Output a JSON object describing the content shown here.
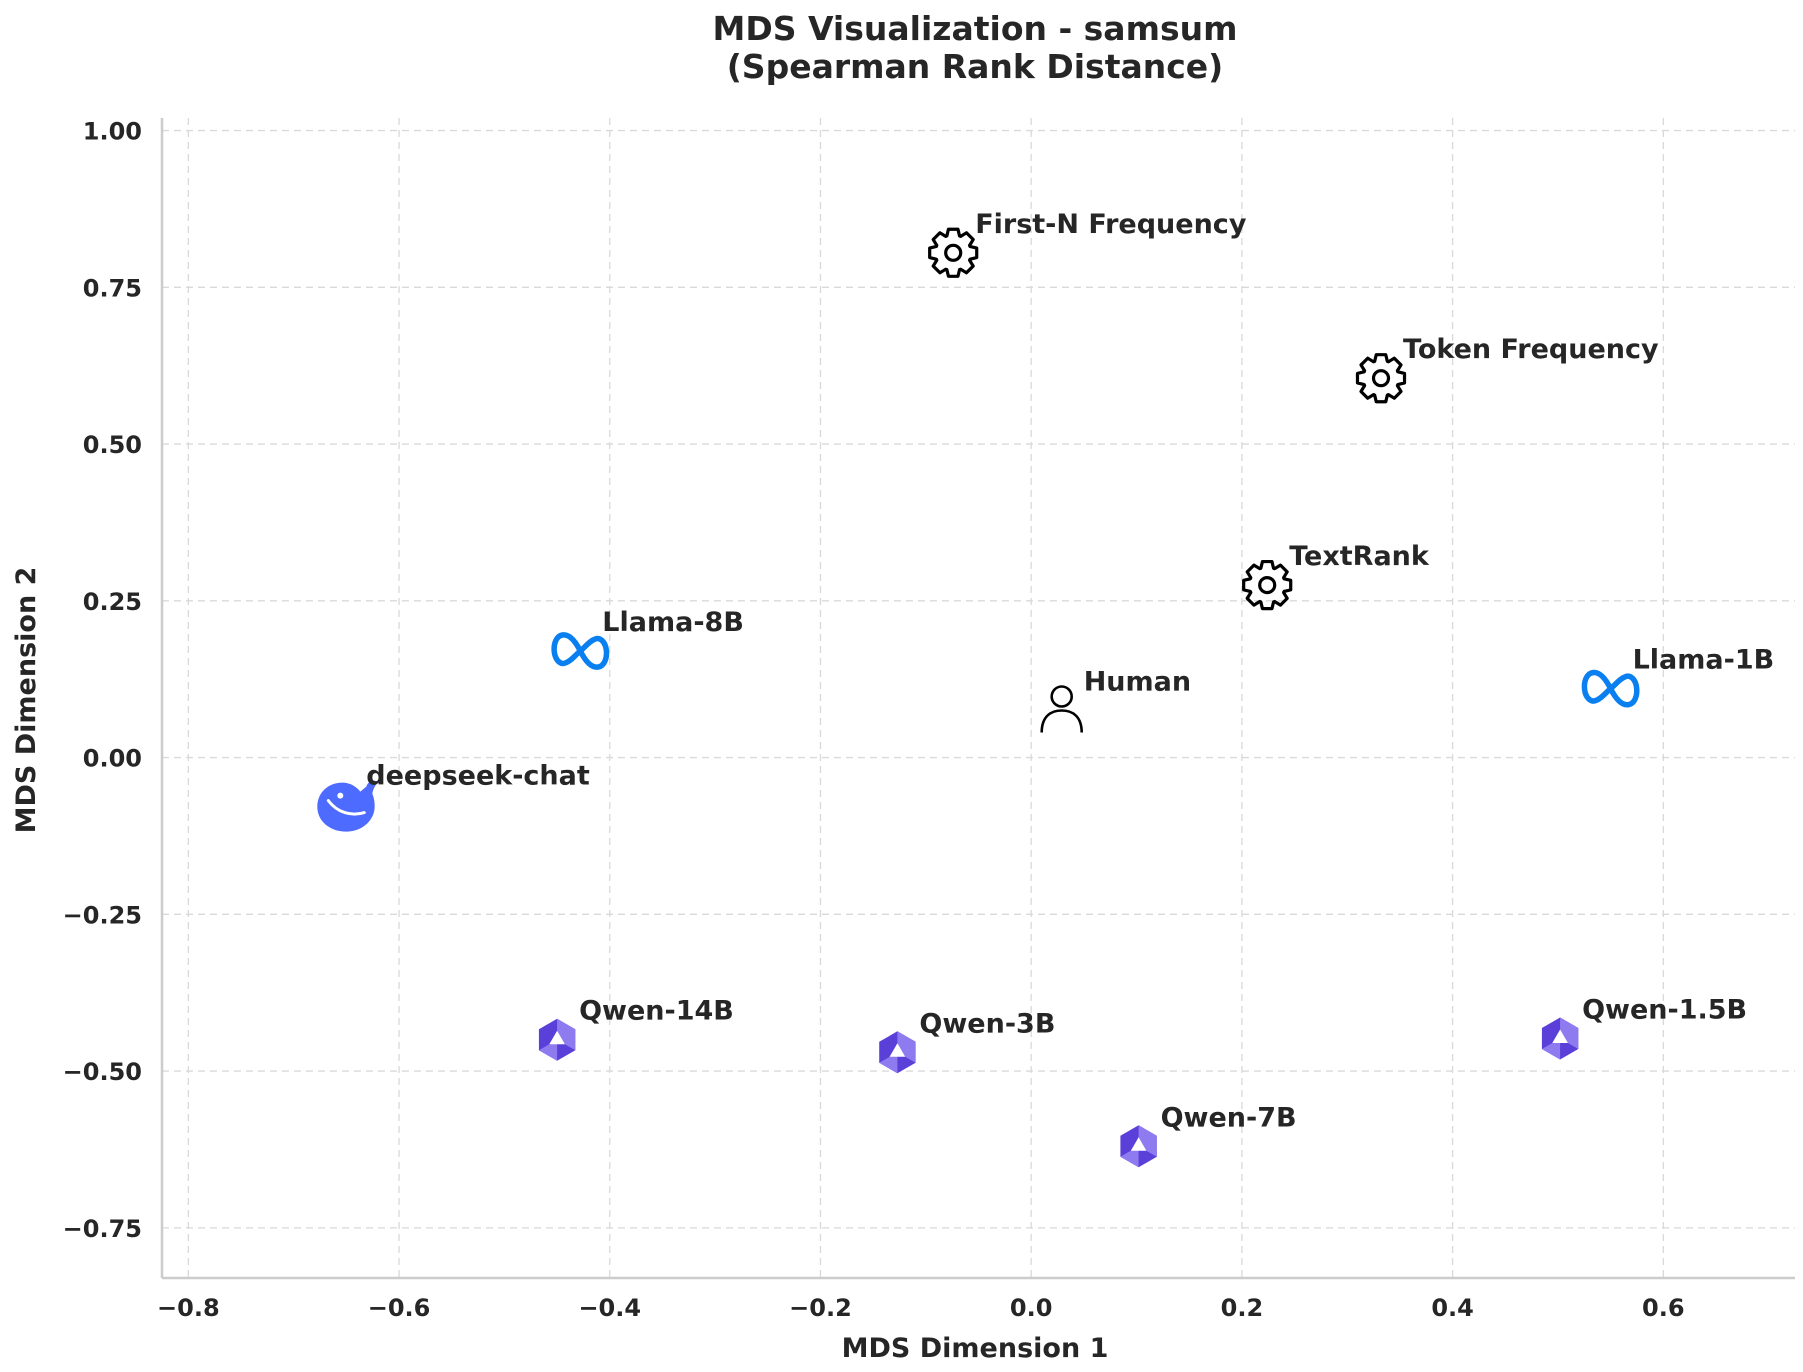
{
  "chart_data": {
    "type": "scatter",
    "title_lines": [
      "MDS Visualization - samsum",
      "(Spearman Rank Distance)"
    ],
    "xlabel": "MDS Dimension 1",
    "ylabel": "MDS Dimension 2",
    "xlim": [
      -0.825,
      0.725
    ],
    "ylim": [
      -0.83,
      1.02
    ],
    "xticks": [
      -0.8,
      -0.6,
      -0.4,
      -0.2,
      0.0,
      0.2,
      0.4,
      0.6
    ],
    "xtick_labels": [
      "−0.8",
      "−0.6",
      "−0.4",
      "−0.2",
      "0.0",
      "0.2",
      "0.4",
      "0.6"
    ],
    "yticks": [
      1.0,
      0.75,
      0.5,
      0.25,
      0.0,
      -0.25,
      -0.5,
      -0.75
    ],
    "ytick_labels": [
      "1.00",
      "0.75",
      "0.50",
      "0.25",
      "0.00",
      "−0.25",
      "−0.50",
      "−0.75"
    ],
    "grid": true,
    "points": [
      {
        "label": "First-N Frequency",
        "x": -0.074,
        "y": 0.805,
        "icon": "gear-icon"
      },
      {
        "label": "Token Frequency",
        "x": 0.332,
        "y": 0.605,
        "icon": "gear-icon"
      },
      {
        "label": "TextRank",
        "x": 0.224,
        "y": 0.275,
        "icon": "gear-icon"
      },
      {
        "label": "Llama-8B",
        "x": -0.428,
        "y": 0.17,
        "icon": "meta-icon"
      },
      {
        "label": "Llama-1B",
        "x": 0.55,
        "y": 0.11,
        "icon": "meta-icon"
      },
      {
        "label": "Human",
        "x": 0.029,
        "y": 0.075,
        "icon": "person-icon"
      },
      {
        "label": "deepseek-chat",
        "x": -0.652,
        "y": -0.075,
        "icon": "deepseek-icon"
      },
      {
        "label": "Qwen-14B",
        "x": -0.45,
        "y": -0.45,
        "icon": "qwen-icon"
      },
      {
        "label": "Qwen-3B",
        "x": -0.127,
        "y": -0.47,
        "icon": "qwen-icon"
      },
      {
        "label": "Qwen-1.5B",
        "x": 0.502,
        "y": -0.448,
        "icon": "qwen-icon"
      },
      {
        "label": "Qwen-7B",
        "x": 0.102,
        "y": -0.62,
        "icon": "qwen-icon"
      }
    ]
  },
  "colors": {
    "text": "#262626",
    "meta": "#0a7ff0",
    "deepseek": "#4d6bfe",
    "qwen_dark": "#5b3fd9",
    "qwen_light": "#8f7bf0",
    "gear": "#000000"
  }
}
